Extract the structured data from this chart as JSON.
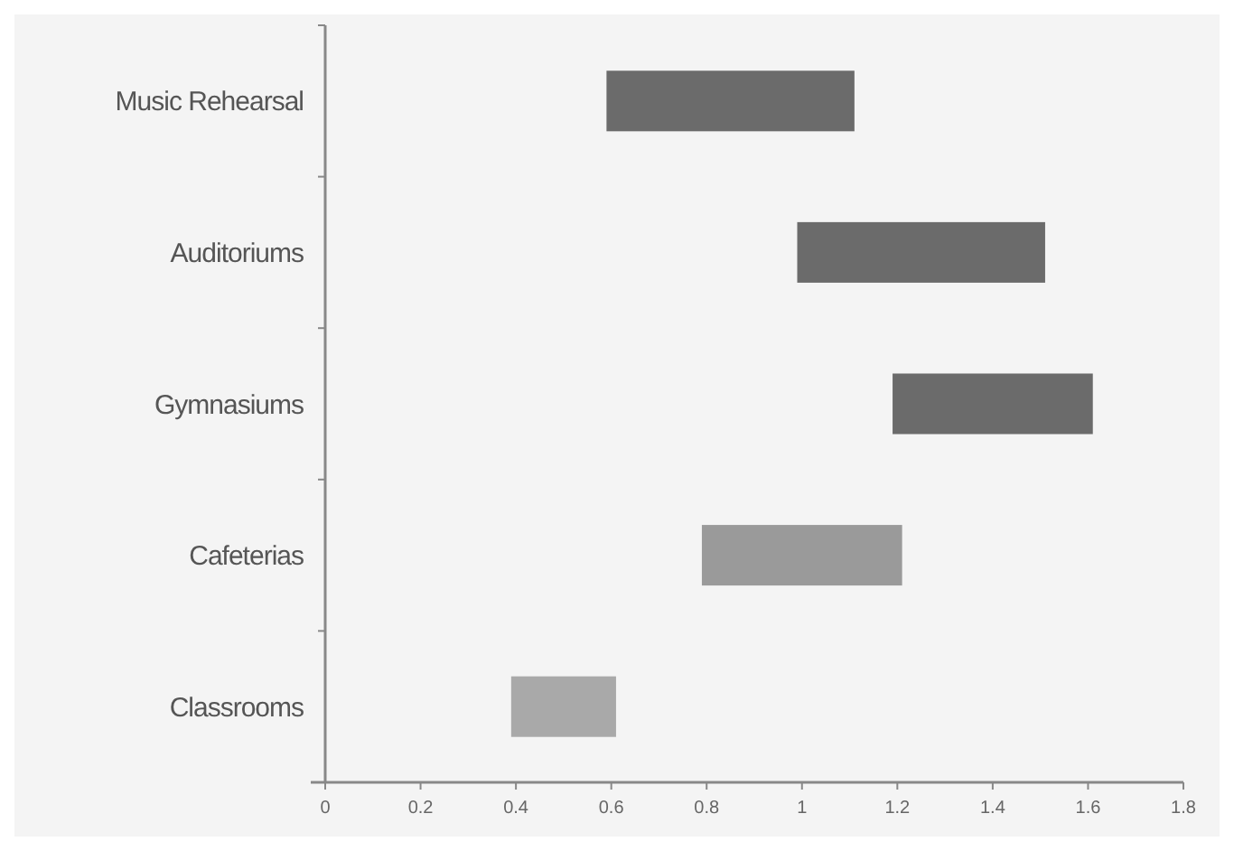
{
  "chart_data": {
    "type": "bar",
    "orientation": "horizontal",
    "categories": [
      "Music Rehearsal",
      "Auditoriums",
      "Gymnasiums",
      "Cafeterias",
      "Classrooms"
    ],
    "base": [
      0.59,
      0.99,
      1.19,
      0.79,
      0.39
    ],
    "values": [
      0.52,
      0.52,
      0.42,
      0.42,
      0.22
    ],
    "colors": [
      "#6b6b6b",
      "#6b6b6b",
      "#6b6b6b",
      "#9a9a9a",
      "#a9a9a9"
    ],
    "xlim": [
      0,
      1.8
    ],
    "xticks": [
      0,
      0.2,
      0.4,
      0.6,
      0.8,
      1,
      1.2,
      1.4,
      1.6,
      1.8
    ],
    "grid": false
  }
}
